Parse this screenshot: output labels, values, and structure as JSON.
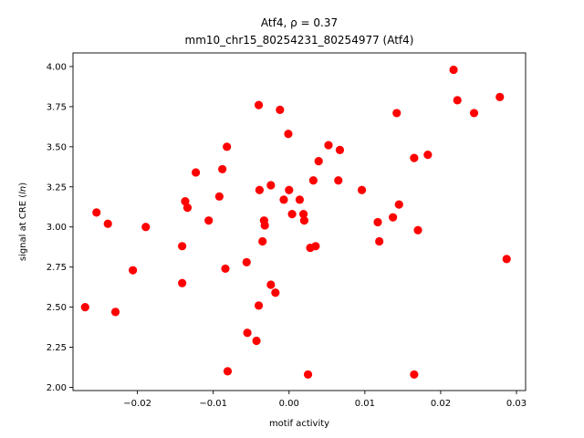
{
  "chart_data": {
    "type": "scatter",
    "title_line1": "Atf4, ρ = 0.37",
    "title_line2": "mm10_chr15_80254231_80254977 (Atf4)",
    "xlabel": "motif activity",
    "ylabel_prefix": "signal at CRE (",
    "ylabel_italic": "ln",
    "ylabel_suffix": ")",
    "xlim": [
      -0.0285,
      0.0312
    ],
    "ylim": [
      1.98,
      4.085
    ],
    "x_ticks": [
      -0.02,
      -0.01,
      0.0,
      0.01,
      0.02,
      0.03
    ],
    "x_tick_labels": [
      "−0.02",
      "−0.01",
      "0.00",
      "0.01",
      "0.02",
      "0.03"
    ],
    "y_ticks": [
      2.0,
      2.25,
      2.5,
      2.75,
      3.0,
      3.25,
      3.5,
      3.75,
      4.0
    ],
    "y_tick_labels": [
      "2.00",
      "2.25",
      "2.50",
      "2.75",
      "3.00",
      "3.25",
      "3.50",
      "3.75",
      "4.00"
    ],
    "grid": false,
    "marker_color": "#ff0000",
    "points": [
      [
        -0.0269,
        2.5
      ],
      [
        -0.0254,
        3.09
      ],
      [
        -0.0239,
        3.02
      ],
      [
        -0.0229,
        2.47
      ],
      [
        -0.0206,
        2.73
      ],
      [
        -0.0189,
        3.0
      ],
      [
        -0.0141,
        2.88
      ],
      [
        -0.0141,
        2.65
      ],
      [
        -0.0137,
        3.16
      ],
      [
        -0.0134,
        3.12
      ],
      [
        -0.0123,
        3.34
      ],
      [
        -0.0106,
        3.04
      ],
      [
        -0.0092,
        3.19
      ],
      [
        -0.0088,
        3.36
      ],
      [
        -0.0084,
        2.74
      ],
      [
        -0.0082,
        3.5
      ],
      [
        -0.0081,
        2.1
      ],
      [
        -0.0056,
        2.78
      ],
      [
        -0.0055,
        2.34
      ],
      [
        -0.0043,
        2.29
      ],
      [
        -0.004,
        3.76
      ],
      [
        -0.004,
        2.51
      ],
      [
        -0.0039,
        3.23
      ],
      [
        -0.0035,
        2.91
      ],
      [
        -0.0033,
        3.04
      ],
      [
        -0.0032,
        3.01
      ],
      [
        -0.0024,
        3.26
      ],
      [
        -0.0024,
        2.64
      ],
      [
        -0.0018,
        2.59
      ],
      [
        -0.0012,
        3.73
      ],
      [
        -0.0007,
        3.17
      ],
      [
        -0.0001,
        3.58
      ],
      [
        0.0,
        3.23
      ],
      [
        0.0004,
        3.08
      ],
      [
        0.0014,
        3.17
      ],
      [
        0.0019,
        3.08
      ],
      [
        0.002,
        3.04
      ],
      [
        0.0025,
        2.08
      ],
      [
        0.0028,
        2.87
      ],
      [
        0.0032,
        3.29
      ],
      [
        0.0035,
        2.88
      ],
      [
        0.0039,
        3.41
      ],
      [
        0.0052,
        3.51
      ],
      [
        0.0065,
        3.29
      ],
      [
        0.0067,
        3.48
      ],
      [
        0.0096,
        3.23
      ],
      [
        0.0117,
        3.03
      ],
      [
        0.0119,
        2.91
      ],
      [
        0.0137,
        3.06
      ],
      [
        0.0142,
        3.71
      ],
      [
        0.0145,
        3.14
      ],
      [
        0.0165,
        3.43
      ],
      [
        0.0165,
        2.08
      ],
      [
        0.017,
        2.98
      ],
      [
        0.0183,
        3.45
      ],
      [
        0.0217,
        3.98
      ],
      [
        0.0222,
        3.79
      ],
      [
        0.0244,
        3.71
      ],
      [
        0.0278,
        3.81
      ],
      [
        0.0287,
        2.8
      ]
    ]
  }
}
